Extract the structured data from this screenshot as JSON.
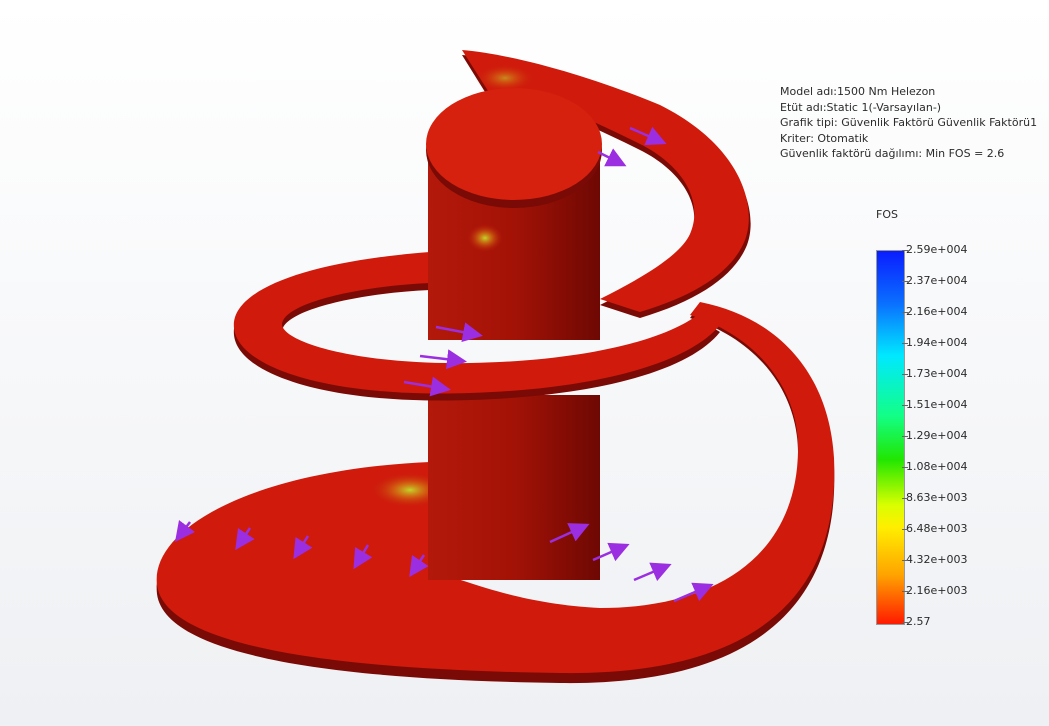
{
  "info": {
    "model": "Model adı:1500 Nm Helezon",
    "study": "Etüt adı:Static 1(-Varsayılan-)",
    "plot_type": "Grafik tipi: Güvenlik Faktörü Güvenlik Faktörü1",
    "criterion": "Kriter: Otomatik",
    "fos_distribution": "Güvenlik faktörü dağılımı: Min FOS = 2.6"
  },
  "legend": {
    "title": "FOS",
    "ticks": [
      "2.59e+004",
      "2.37e+004",
      "2.16e+004",
      "1.94e+004",
      "1.73e+004",
      "1.51e+004",
      "1.29e+004",
      "1.08e+004",
      "8.63e+003",
      "6.48e+003",
      "4.32e+003",
      "2.16e+003",
      "2.57"
    ],
    "colors": {
      "max": "#0a1dff",
      "mid": "#22e600",
      "min": "#ff1a00"
    }
  },
  "model_colors": {
    "body": "#d01a0c",
    "edge": "#7a0a05",
    "arrows": "#9b2ee0"
  }
}
